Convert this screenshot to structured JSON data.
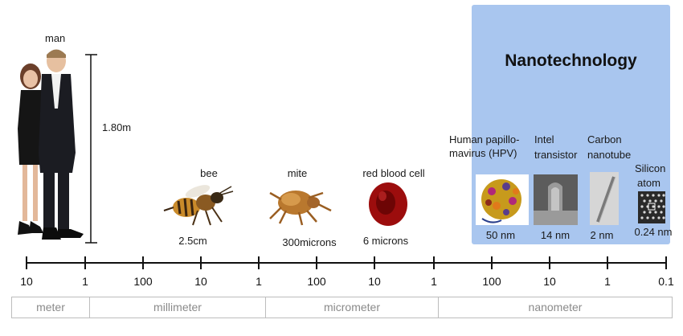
{
  "panel": {
    "title": "Nanotechnology",
    "color": "#a9c6ef"
  },
  "objects": {
    "man": {
      "label": "man",
      "size": "1.80m"
    },
    "bee": {
      "label": "bee",
      "size": "2.5cm"
    },
    "mite": {
      "label": "mite",
      "size": "300microns"
    },
    "rbc": {
      "label": "red blood cell",
      "size": "6 microns"
    },
    "hpv": {
      "label_line1": "Human papillo-",
      "label_line2": "mavirus (HPV)",
      "size": "50 nm"
    },
    "transistor": {
      "label_line1": "Intel",
      "label_line2": "transistor",
      "size": "14 nm"
    },
    "nanotube": {
      "label_line1": "Carbon",
      "label_line2": "nanotube",
      "size": "2 nm"
    },
    "silicon": {
      "label_line1": "Silicon",
      "label_line2": "atom",
      "size": "0.24 nm"
    }
  },
  "scale": {
    "ticks": [
      "10",
      "1",
      "100",
      "10",
      "1",
      "100",
      "10",
      "1",
      "100",
      "10",
      "1",
      "0.1"
    ],
    "units": [
      "meter",
      "millimeter",
      "micrometer",
      "nanometer"
    ]
  }
}
